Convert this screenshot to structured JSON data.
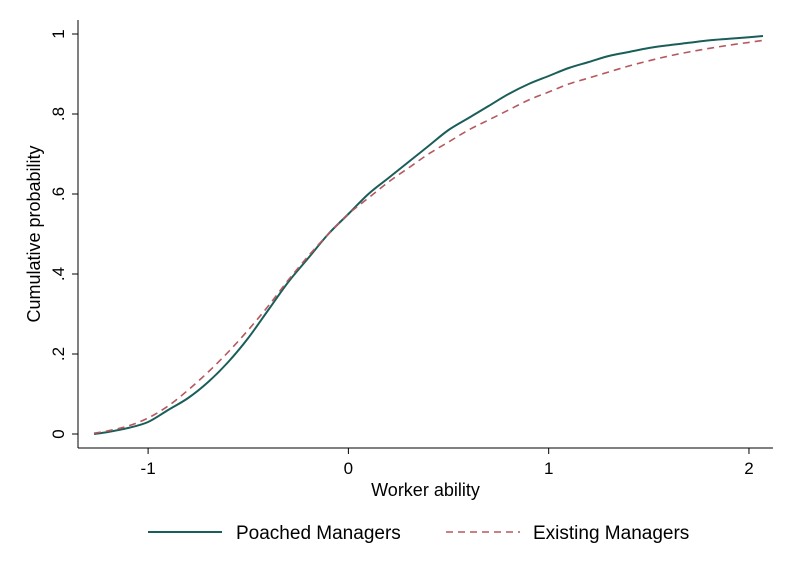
{
  "chart_data": {
    "type": "line",
    "title": "",
    "xlabel": "Worker ability",
    "ylabel": "Cumulative probability",
    "xlim": [
      -1.35,
      2.12
    ],
    "ylim": [
      -0.035,
      1.035
    ],
    "xticks": [
      -1,
      0,
      1,
      2
    ],
    "xtick_labels": [
      "-1",
      "0",
      "1",
      "2"
    ],
    "yticks": [
      0,
      0.2,
      0.4,
      0.6,
      0.8,
      1
    ],
    "ytick_labels": [
      "0",
      ".2",
      ".4",
      ".6",
      ".8",
      "1"
    ],
    "grid": false,
    "legend_position": "bottom",
    "series": [
      {
        "name": "Poached Managers",
        "color": "#1a5e5a",
        "style": "solid",
        "x": [
          -1.27,
          -1.2,
          -1.1,
          -1.0,
          -0.9,
          -0.8,
          -0.7,
          -0.6,
          -0.5,
          -0.4,
          -0.3,
          -0.2,
          -0.1,
          0.0,
          0.1,
          0.2,
          0.3,
          0.4,
          0.5,
          0.6,
          0.7,
          0.8,
          0.9,
          1.0,
          1.1,
          1.2,
          1.3,
          1.4,
          1.5,
          1.6,
          1.7,
          1.8,
          1.9,
          2.0,
          2.07
        ],
        "y": [
          0.0,
          0.005,
          0.015,
          0.03,
          0.06,
          0.09,
          0.13,
          0.18,
          0.24,
          0.31,
          0.38,
          0.44,
          0.5,
          0.55,
          0.6,
          0.64,
          0.68,
          0.72,
          0.76,
          0.79,
          0.82,
          0.85,
          0.875,
          0.895,
          0.915,
          0.93,
          0.945,
          0.955,
          0.965,
          0.972,
          0.978,
          0.984,
          0.988,
          0.992,
          0.995
        ]
      },
      {
        "name": "Existing Managers",
        "color": "#b5595f",
        "style": "dashed",
        "x": [
          -1.27,
          -1.2,
          -1.1,
          -1.0,
          -0.9,
          -0.8,
          -0.7,
          -0.6,
          -0.5,
          -0.4,
          -0.3,
          -0.2,
          -0.1,
          0.0,
          0.1,
          0.2,
          0.3,
          0.4,
          0.5,
          0.6,
          0.7,
          0.8,
          0.9,
          1.0,
          1.1,
          1.2,
          1.3,
          1.4,
          1.5,
          1.6,
          1.7,
          1.8,
          1.9,
          2.0,
          2.07
        ],
        "y": [
          0.002,
          0.008,
          0.02,
          0.04,
          0.07,
          0.11,
          0.155,
          0.205,
          0.26,
          0.32,
          0.385,
          0.445,
          0.5,
          0.55,
          0.59,
          0.63,
          0.665,
          0.7,
          0.73,
          0.76,
          0.785,
          0.81,
          0.835,
          0.855,
          0.875,
          0.89,
          0.905,
          0.92,
          0.933,
          0.945,
          0.955,
          0.964,
          0.972,
          0.979,
          0.984
        ]
      }
    ]
  }
}
